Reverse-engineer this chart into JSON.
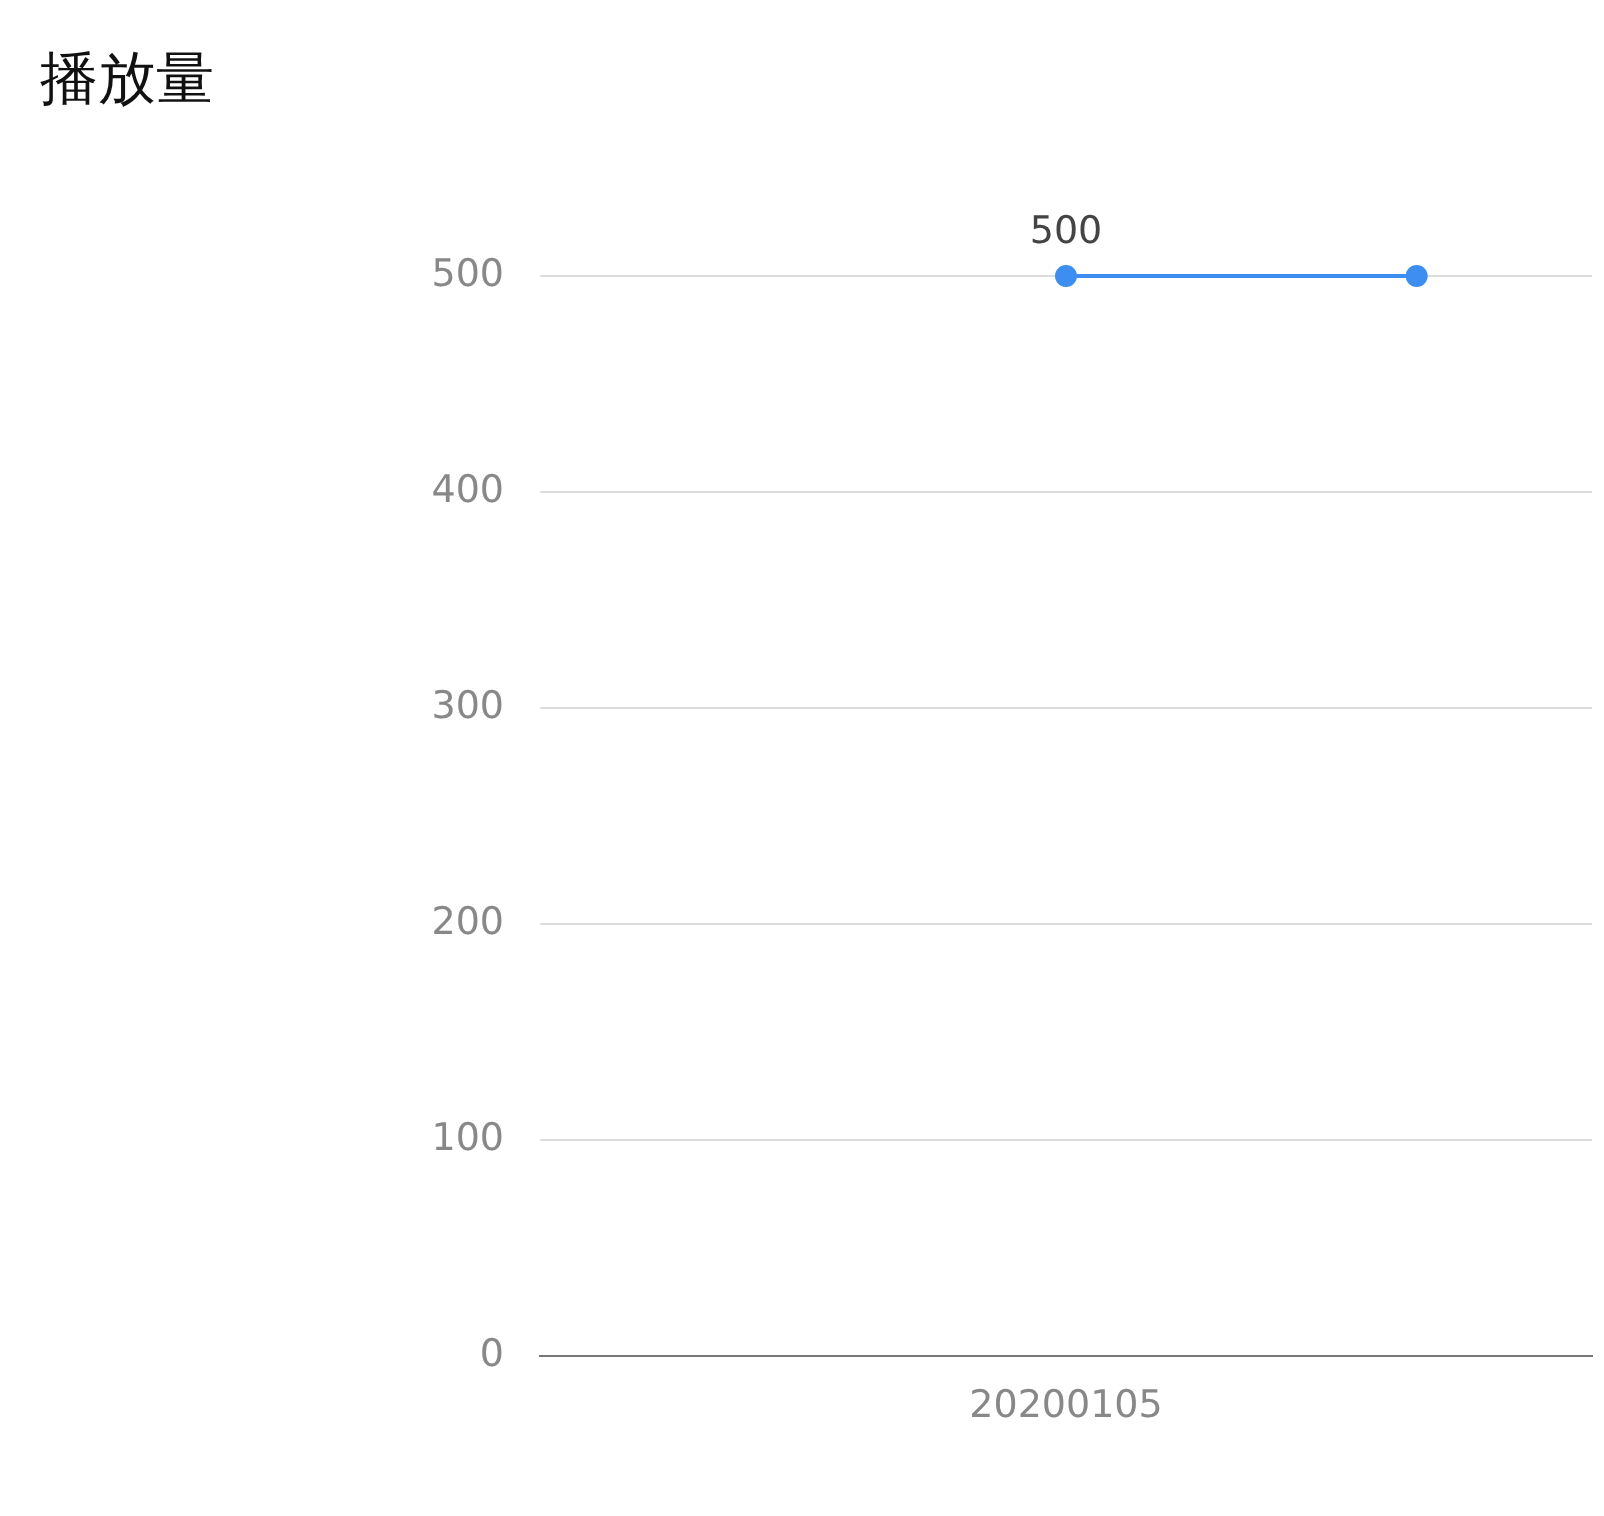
{
  "chart_data": {
    "type": "line",
    "title": "播放量",
    "categories": [
      null,
      "20200105",
      null
    ],
    "series": [
      {
        "color": "#3d8ef0",
        "values": [
          null,
          500,
          500
        ],
        "value_labels": [
          null,
          "500",
          null
        ]
      }
    ],
    "ylim": [
      0,
      500
    ],
    "yticks": [
      0,
      100,
      200,
      300,
      400,
      500
    ],
    "grid": "y",
    "legend": false,
    "marker": "circle",
    "line_style": "solid"
  }
}
